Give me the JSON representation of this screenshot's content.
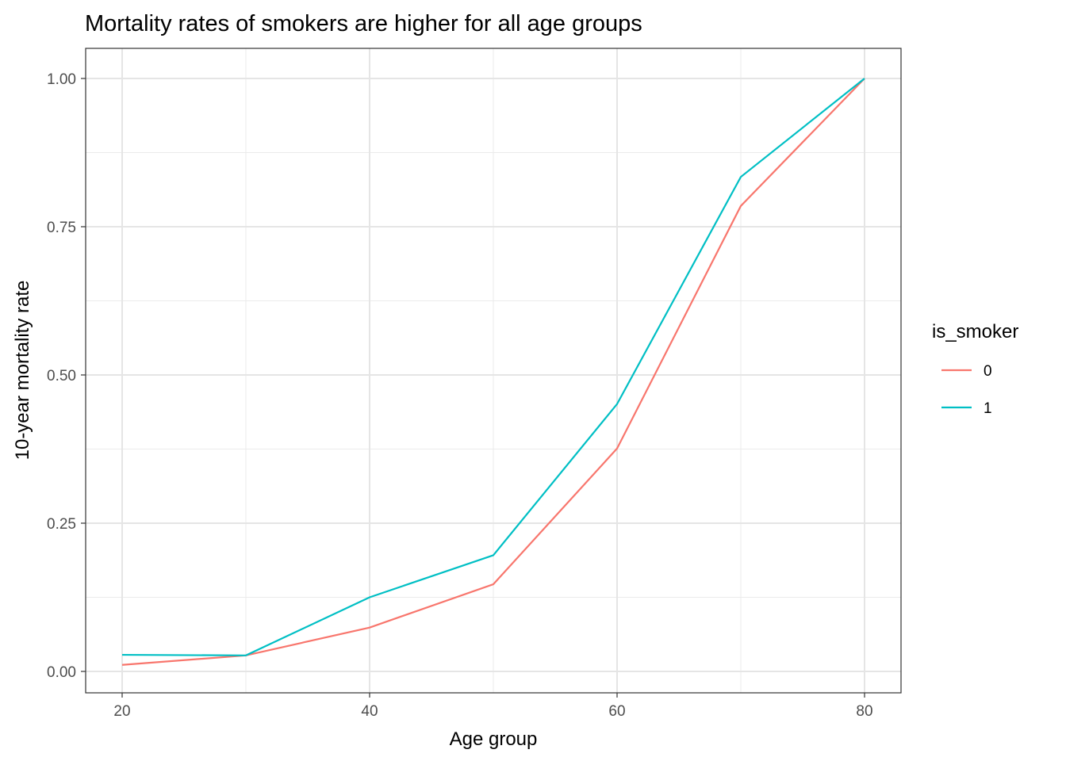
{
  "chart_data": {
    "type": "line",
    "title": "Mortality rates of smokers are higher for all age groups",
    "xlabel": "Age group",
    "ylabel": "10-year mortality rate",
    "x": [
      20,
      30,
      40,
      50,
      60,
      70,
      80
    ],
    "xlim": [
      17.5,
      83
    ],
    "ylim": [
      -0.037,
      1.05
    ],
    "xticks": [
      20,
      40,
      60,
      80
    ],
    "xtick_labels": [
      "20",
      "40",
      "60",
      "80"
    ],
    "yticks": [
      0,
      0.25,
      0.5,
      0.75,
      1.0
    ],
    "ytick_labels": [
      "0.00",
      "0.25",
      "0.50",
      "0.75",
      "1.00"
    ],
    "grid": true,
    "legend": {
      "title": "is_smoker",
      "placement": "right"
    },
    "series": [
      {
        "name": "0",
        "color": "#F8766D",
        "values": [
          0.011,
          0.027,
          0.074,
          0.147,
          0.376,
          0.785,
          1.0
        ]
      },
      {
        "name": "1",
        "color": "#00BFC4",
        "values": [
          0.028,
          0.027,
          0.125,
          0.196,
          0.451,
          0.834,
          1.0
        ]
      }
    ]
  }
}
